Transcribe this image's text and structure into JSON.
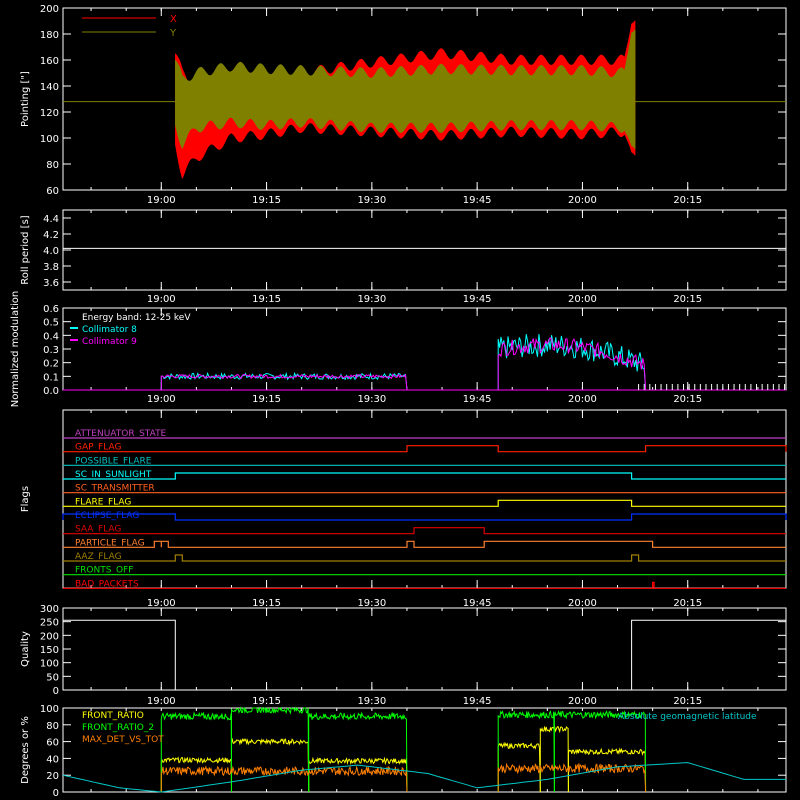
{
  "colors": {
    "background": "#000000",
    "axis": "#ffffff",
    "x_pointing": "#ff0000",
    "y_pointing": "#808000",
    "collimator8": "#00ffff",
    "collimator9": "#ff00ff",
    "front_ratio": "#ffff00",
    "front_ratio_2": "#00ff00",
    "max_det": "#ff8000",
    "geolat": "#00c8c8"
  },
  "chart_data": [
    {
      "id": "pointing",
      "type": "line",
      "ylabel": "Pointing [\"]",
      "ylim": [
        60,
        200
      ],
      "yticks": [
        "60",
        "80",
        "100",
        "120",
        "140",
        "160",
        "180",
        "200"
      ],
      "xticks": [
        "19:00",
        "19:15",
        "19:30",
        "19:45",
        "20:00",
        "20:15"
      ],
      "x_range": [
        "18:46",
        "20:29"
      ],
      "legend": [
        "X",
        "Y"
      ],
      "legend_position": "top-left",
      "reference_level": 128,
      "data_interval": [
        "19:02",
        "20:07"
      ],
      "series": [
        {
          "name": "X",
          "minute": [
            2,
            3,
            5,
            10,
            15,
            20,
            30,
            40,
            50,
            60,
            66,
            67
          ],
          "high": [
            165,
            150,
            140,
            155,
            152,
            150,
            158,
            165,
            160,
            160,
            160,
            192
          ],
          "low": [
            95,
            72,
            85,
            100,
            103,
            108,
            105,
            102,
            105,
            103,
            105,
            85
          ]
        },
        {
          "name": "Y",
          "minute": [
            2,
            3,
            5,
            10,
            15,
            20,
            30,
            40,
            50,
            60,
            66,
            67
          ],
          "high": [
            160,
            145,
            150,
            155,
            153,
            152,
            150,
            153,
            152,
            152,
            150,
            185
          ],
          "low": [
            110,
            95,
            108,
            112,
            110,
            112,
            108,
            108,
            110,
            110,
            108,
            90
          ]
        }
      ]
    },
    {
      "id": "roll",
      "type": "line",
      "ylabel": "Roll period [s]",
      "ylim": [
        3.5,
        4.5
      ],
      "yticks": [
        "3.6",
        "3.8",
        "4.0",
        "4.2",
        "4.4"
      ],
      "xticks": [
        "19:00",
        "19:15",
        "19:30",
        "19:45",
        "20:00",
        "20:15"
      ],
      "series": [
        {
          "name": "",
          "value": 4.02
        }
      ]
    },
    {
      "id": "modulation",
      "type": "line",
      "ylabel": "Normalized modulation",
      "ylim": [
        0,
        0.6
      ],
      "yticks": [
        "0.0",
        "0.1",
        "0.2",
        "0.3",
        "0.4",
        "0.5",
        "0.6"
      ],
      "xticks": [
        "19:00",
        "19:15",
        "19:30",
        "19:45",
        "20:00",
        "20:15"
      ],
      "legend": [
        "Energy band: 12-25 keV",
        "Collimator 8",
        "Collimator 9"
      ],
      "legend_position": "top-left",
      "segments": [
        {
          "start": "19:00",
          "end": "19:35",
          "level": 0.1,
          "noise": 0.02
        },
        {
          "start": "19:48",
          "end": "20:09",
          "level": 0.3,
          "noise": 0.08
        }
      ]
    },
    {
      "id": "flags",
      "type": "line",
      "ylabel": "Flags",
      "xticks": [
        "19:00",
        "19:15",
        "19:30",
        "19:45",
        "20:00",
        "20:15"
      ],
      "flags": [
        {
          "name": "ATTENUATOR_STATE",
          "color": "#c040c0",
          "on": []
        },
        {
          "name": "GAP_FLAG",
          "color": "#ff2000",
          "on": [
            [
              "19:35",
              "19:48"
            ],
            [
              "20:09",
              "20:29"
            ]
          ]
        },
        {
          "name": "POSSIBLE_FLARE",
          "color": "#00c0c0",
          "on": []
        },
        {
          "name": "SC_IN_SUNLIGHT",
          "color": "#00ffff",
          "on": [
            [
              "19:02",
              "20:07"
            ]
          ]
        },
        {
          "name": "SC_TRANSMITTER",
          "color": "#ff6020",
          "on": []
        },
        {
          "name": "FLARE_FLAG",
          "color": "#ffff00",
          "on": [
            [
              "19:48",
              "20:07"
            ]
          ]
        },
        {
          "name": "ECLIPSE_FLAG",
          "color": "#0030ff",
          "on": [
            [
              "18:46",
              "19:02"
            ],
            [
              "20:07",
              "20:29"
            ]
          ]
        },
        {
          "name": "SAA_FLAG",
          "color": "#e00000",
          "on": [
            [
              "19:36",
              "19:46"
            ]
          ]
        },
        {
          "name": "PARTICLE_FLAG",
          "color": "#ff8030",
          "on": [
            [
              "18:59",
              "19:00"
            ],
            [
              "19:00",
              "19:01"
            ],
            [
              "19:35",
              "19:36"
            ],
            [
              "19:46",
              "20:10"
            ]
          ]
        },
        {
          "name": "AAZ_FLAG",
          "color": "#a08000",
          "on": [
            [
              "19:02",
              "19:03"
            ],
            [
              "20:07",
              "20:08"
            ]
          ]
        },
        {
          "name": "FRONTS_OFF",
          "color": "#00e000",
          "on": []
        },
        {
          "name": "BAD_PACKETS",
          "color": "#ff0000",
          "on": [
            [
              "20:10",
              "20:10"
            ]
          ]
        }
      ]
    },
    {
      "id": "quality",
      "type": "line",
      "ylabel": "Quality",
      "ylim": [
        0,
        300
      ],
      "yticks": [
        "0",
        "50",
        "100",
        "150",
        "200",
        "250",
        "300"
      ],
      "xticks": [
        "19:00",
        "19:15",
        "19:30",
        "19:45",
        "20:00",
        "20:15"
      ],
      "series": [
        {
          "name": "",
          "high": 255,
          "low": 0,
          "low_interval": [
            "19:02",
            "20:07"
          ]
        }
      ]
    },
    {
      "id": "ratios",
      "type": "line",
      "ylabel": "Degrees or %",
      "ylim": [
        0,
        100
      ],
      "yticks": [
        "0",
        "20",
        "40",
        "60",
        "80",
        "100"
      ],
      "legend_position": "top-left",
      "series": [
        {
          "name": "FRONT_RATIO",
          "segments": [
            {
              "start": "19:00",
              "end": "19:10",
              "level": 38
            },
            {
              "start": "19:10",
              "end": "19:21",
              "level": 60
            },
            {
              "start": "19:21",
              "end": "19:35",
              "level": 37
            },
            {
              "start": "19:48",
              "end": "19:54",
              "level": 55
            },
            {
              "start": "19:54",
              "end": "19:58",
              "level": 75
            },
            {
              "start": "19:58",
              "end": "20:09",
              "level": 48
            }
          ]
        },
        {
          "name": "FRONT_RATIO_2",
          "segments": [
            {
              "start": "19:00",
              "end": "19:10",
              "level": 90
            },
            {
              "start": "19:10",
              "end": "19:21",
              "level": 98
            },
            {
              "start": "19:21",
              "end": "19:35",
              "level": 90
            },
            {
              "start": "19:48",
              "end": "19:56",
              "level": 92
            },
            {
              "start": "19:56",
              "end": "20:09",
              "level": 92
            }
          ]
        },
        {
          "name": "MAX_DET_VS_TOT",
          "segments": [
            {
              "start": "19:00",
              "end": "19:35",
              "level": 25
            },
            {
              "start": "19:48",
              "end": "20:09",
              "level": 28
            }
          ]
        },
        {
          "name": "Absolute geomagnetic latitude",
          "minute": [
            -14,
            -6,
            0,
            10,
            20,
            28,
            38,
            45,
            55,
            65,
            75,
            83
          ],
          "values": [
            20,
            5,
            0,
            12,
            26,
            32,
            22,
            5,
            15,
            30,
            35,
            15
          ]
        }
      ]
    }
  ]
}
